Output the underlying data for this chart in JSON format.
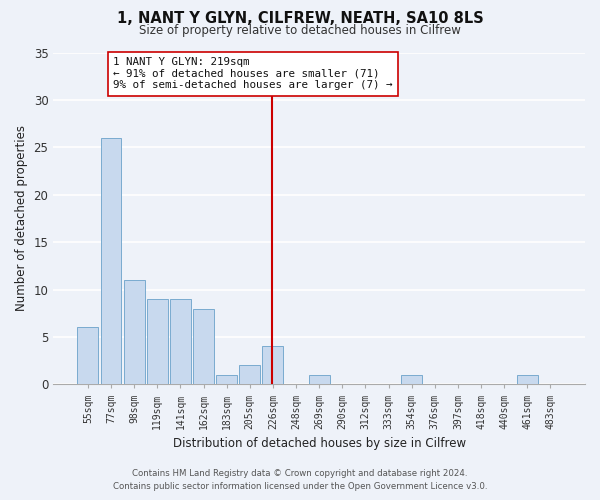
{
  "title": "1, NANT Y GLYN, CILFREW, NEATH, SA10 8LS",
  "subtitle": "Size of property relative to detached houses in Cilfrew",
  "xlabel": "Distribution of detached houses by size in Cilfrew",
  "ylabel": "Number of detached properties",
  "bar_labels": [
    "55sqm",
    "77sqm",
    "98sqm",
    "119sqm",
    "141sqm",
    "162sqm",
    "183sqm",
    "205sqm",
    "226sqm",
    "248sqm",
    "269sqm",
    "290sqm",
    "312sqm",
    "333sqm",
    "354sqm",
    "376sqm",
    "397sqm",
    "418sqm",
    "440sqm",
    "461sqm",
    "483sqm"
  ],
  "bar_values": [
    6,
    26,
    11,
    9,
    9,
    8,
    1,
    2,
    4,
    0,
    1,
    0,
    0,
    0,
    1,
    0,
    0,
    0,
    0,
    1,
    0
  ],
  "bar_color": "#c8d9ee",
  "bar_edge_color": "#7aabcf",
  "ylim": [
    0,
    35
  ],
  "yticks": [
    0,
    5,
    10,
    15,
    20,
    25,
    30,
    35
  ],
  "property_line_color": "#cc0000",
  "annotation_line1": "1 NANT Y GLYN: 219sqm",
  "annotation_line2": "← 91% of detached houses are smaller (71)",
  "annotation_line3": "9% of semi-detached houses are larger (7) →",
  "footer_line1": "Contains HM Land Registry data © Crown copyright and database right 2024.",
  "footer_line2": "Contains public sector information licensed under the Open Government Licence v3.0.",
  "background_color": "#eef2f9",
  "grid_color": "#ffffff"
}
